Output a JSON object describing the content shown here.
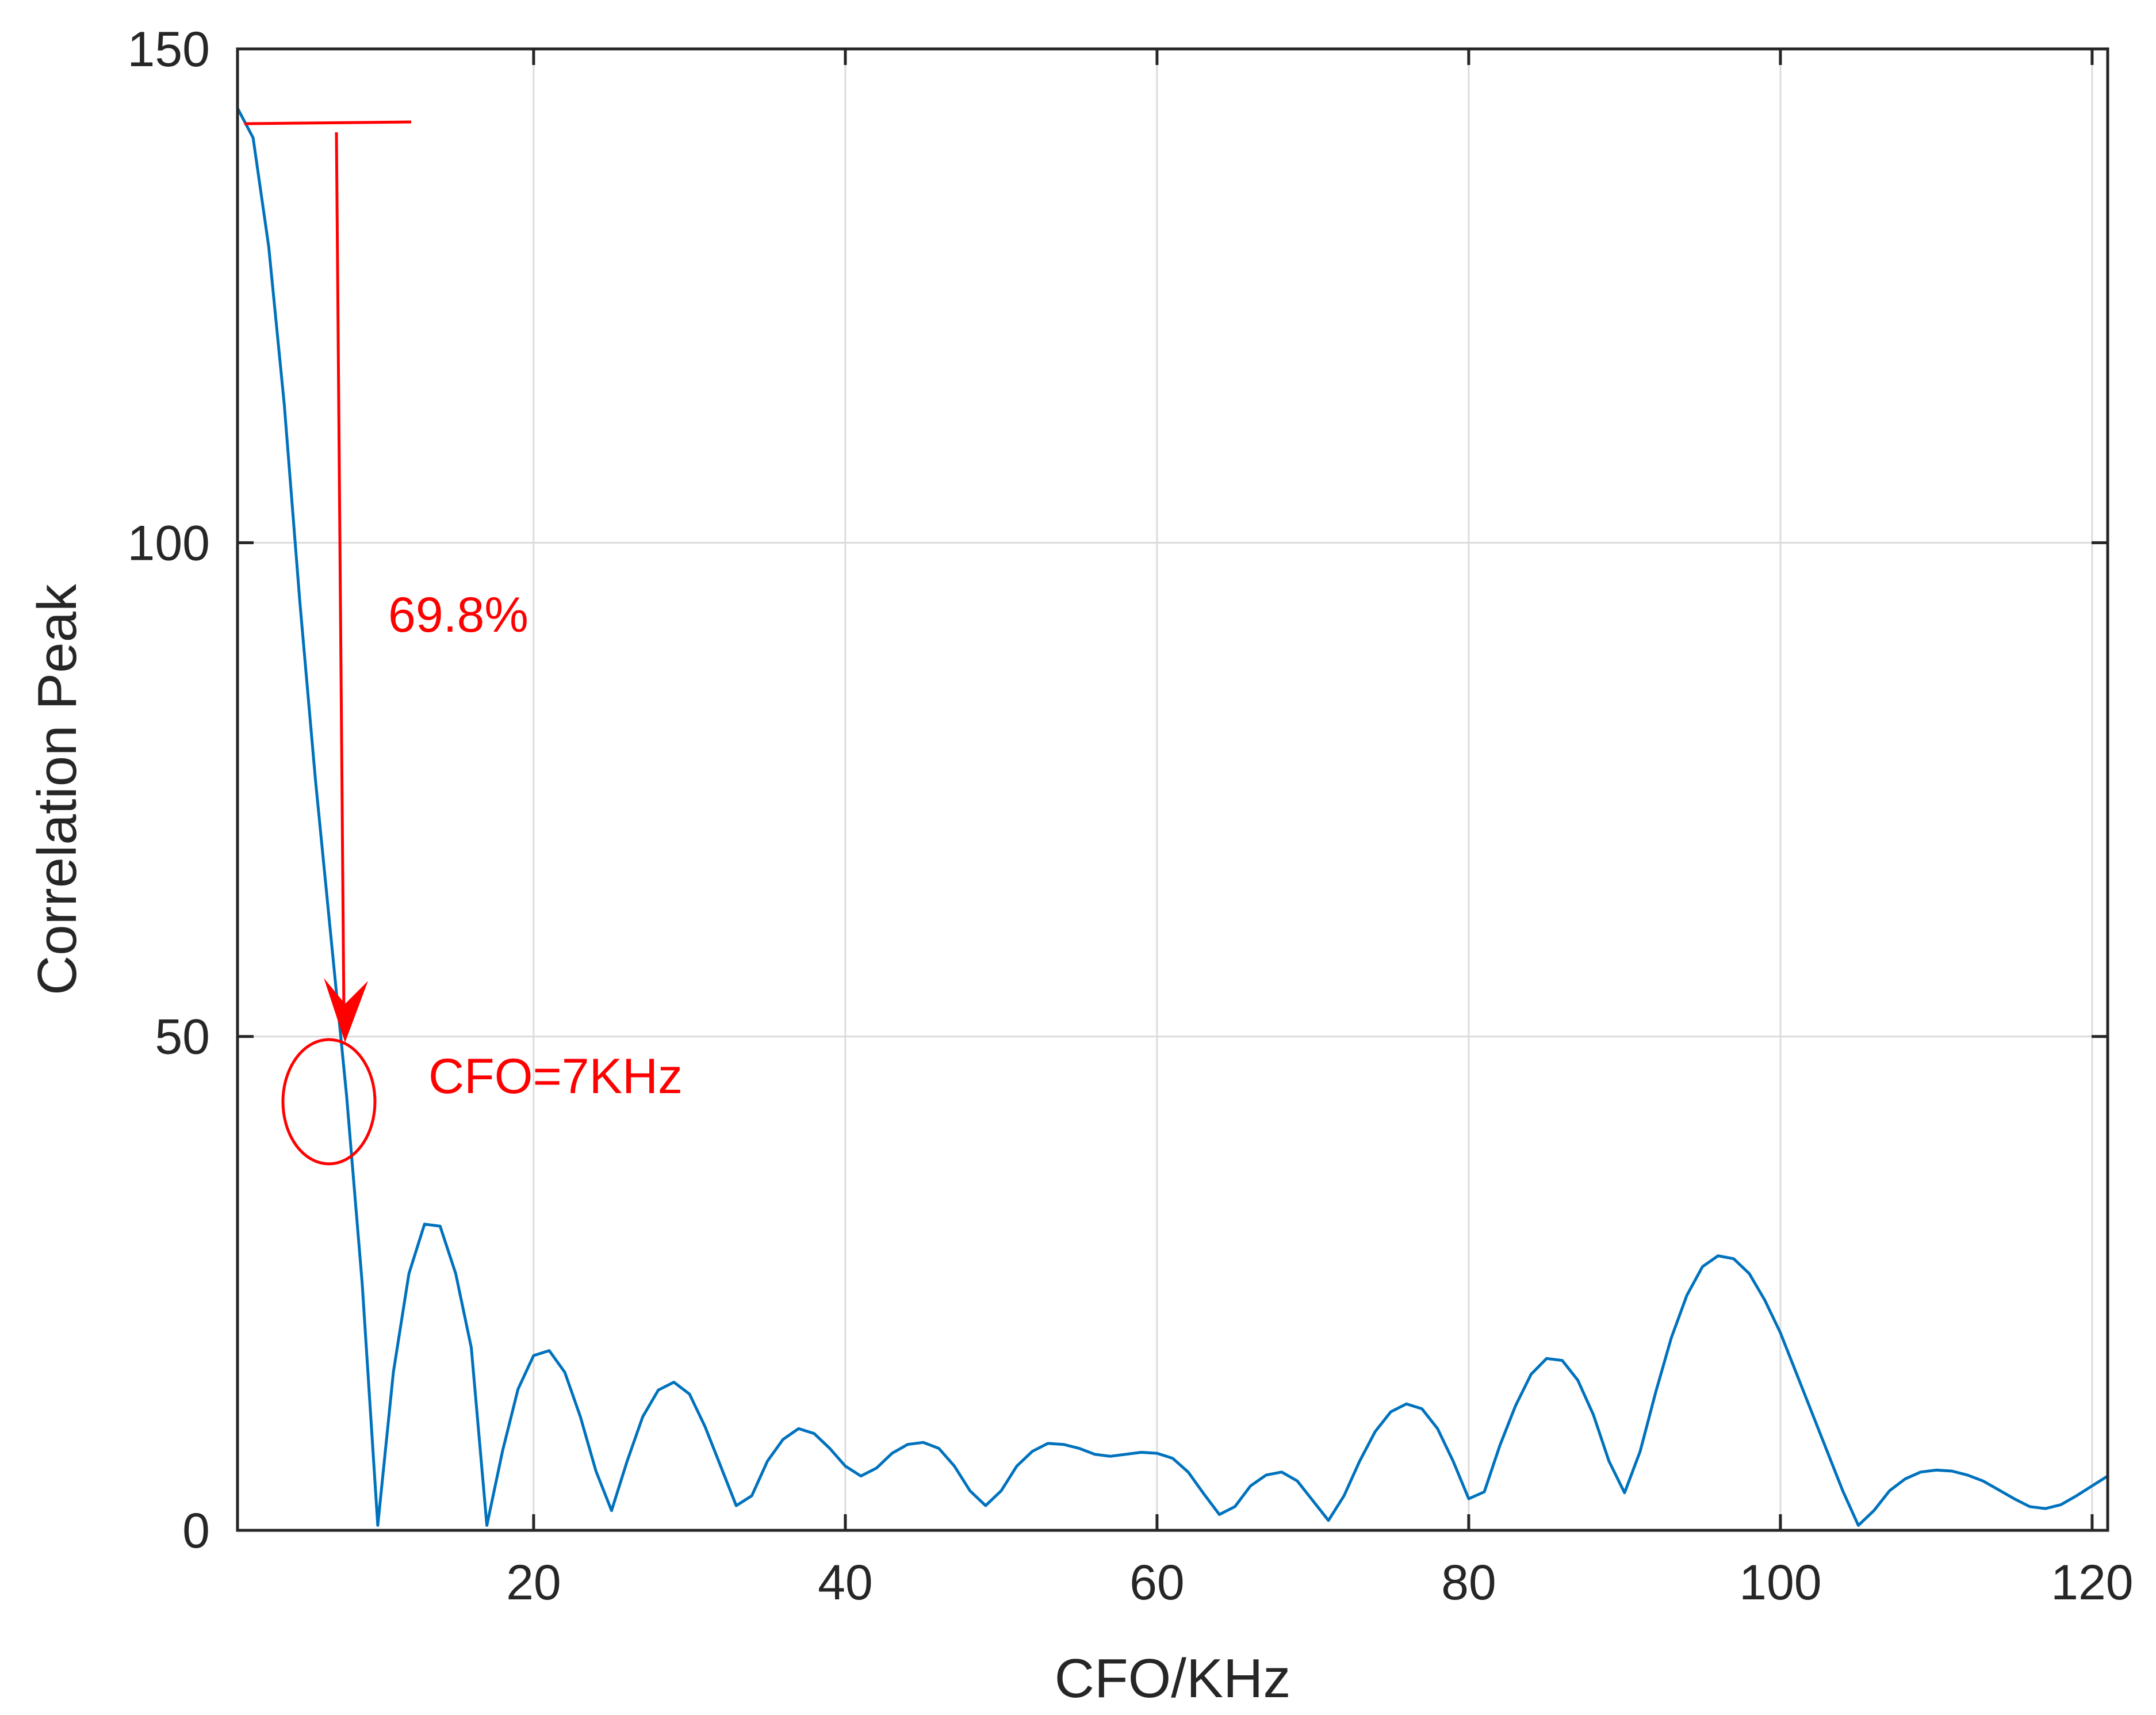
{
  "chart_data": {
    "type": "line",
    "title": "",
    "xlabel": "CFO/KHz",
    "ylabel": "Correlation Peak",
    "xlim": [
      1,
      121
    ],
    "ylim": [
      0,
      150
    ],
    "xticks": [
      20,
      40,
      60,
      80,
      100,
      120
    ],
    "yticks": [
      0,
      50,
      100,
      150
    ],
    "grid": true,
    "colors": {
      "line": "#0072BD",
      "annotation": "#FF0000",
      "axis": "#262626",
      "grid": "#DCDCDC"
    },
    "series": [
      {
        "x": [
          1,
          2,
          3,
          4,
          5,
          6,
          7,
          8,
          9,
          10,
          11,
          12,
          13,
          14,
          15,
          16,
          17,
          18,
          19,
          20,
          21,
          22,
          23,
          24,
          25,
          26,
          27,
          28,
          29,
          30,
          31,
          32,
          33,
          34,
          35,
          36,
          37,
          38,
          39,
          40,
          41,
          42,
          43,
          44,
          45,
          46,
          47,
          48,
          49,
          50,
          51,
          52,
          53,
          54,
          55,
          56,
          57,
          58,
          59,
          60,
          61,
          62,
          63,
          64,
          65,
          66,
          67,
          68,
          69,
          70,
          71,
          72,
          73,
          74,
          75,
          76,
          77,
          78,
          79,
          80,
          81,
          82,
          83,
          84,
          85,
          86,
          87,
          88,
          89,
          90,
          91,
          92,
          93,
          94,
          95,
          96,
          97,
          98,
          99,
          100,
          101,
          102,
          103,
          104,
          105,
          106,
          107,
          108,
          109,
          110,
          111,
          112,
          113,
          114,
          115,
          116,
          117,
          118,
          119,
          120,
          121
        ],
        "y": [
          144,
          141,
          130,
          114,
          94,
          76,
          60,
          44,
          25,
          0.5,
          16,
          26,
          31,
          30.8,
          26,
          18.5,
          0.5,
          8,
          14.3,
          17.7,
          18.2,
          16,
          11.5,
          6,
          2,
          7,
          11.5,
          14.2,
          15,
          13.8,
          10.5,
          6.5,
          2.5,
          3.5,
          7,
          9.2,
          10.3,
          9.8,
          8.3,
          6.5,
          5.5,
          6.3,
          7.8,
          8.7,
          8.9,
          8.3,
          6.5,
          4,
          2.5,
          4,
          6.5,
          8,
          8.8,
          8.7,
          8.3,
          7.7,
          7.5,
          7.7,
          7.9,
          7.8,
          7.3,
          5.9,
          3.7,
          1.6,
          2.4,
          4.5,
          5.6,
          5.9,
          5,
          3,
          1,
          3.5,
          7,
          10,
          12,
          12.8,
          12.3,
          10.3,
          7,
          3.2,
          3.9,
          8.6,
          12.6,
          15.8,
          17.4,
          17.2,
          15.2,
          11.7,
          7,
          3.8,
          8,
          14,
          19.5,
          23.8,
          26.7,
          27.8,
          27.5,
          26,
          23.3,
          20,
          16,
          12,
          8,
          4,
          0.5,
          2,
          4,
          5.2,
          5.9,
          6.1,
          6,
          5.6,
          5,
          4.1,
          3.2,
          2.4,
          2.2,
          2.6,
          3.5,
          4.5,
          5.5
        ]
      }
    ],
    "annotations": {
      "percent_label": "69.8%",
      "cfo_label": "CFO=7KHz"
    }
  }
}
